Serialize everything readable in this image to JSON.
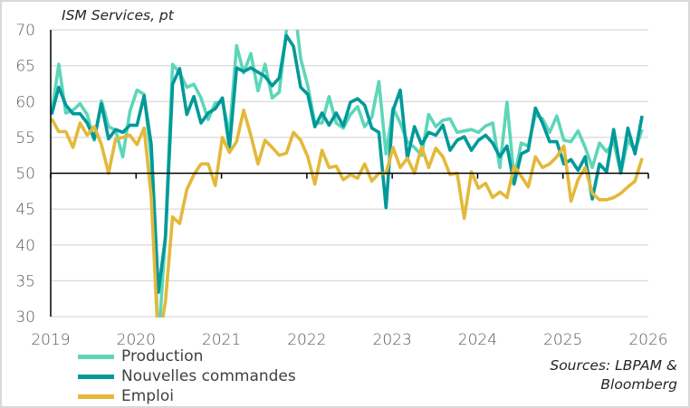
{
  "chart_data": {
    "type": "line",
    "title": "ISM Services, pt",
    "xlabel": "",
    "ylabel": "",
    "x_start": "2019-01",
    "frequency": "monthly",
    "xlim": [
      2019,
      2026
    ],
    "ylim": [
      30,
      70
    ],
    "reference_line": 50,
    "x_ticks": [
      "2019",
      "2020",
      "2021",
      "2022",
      "2023",
      "2024",
      "2025",
      "2026"
    ],
    "y_ticks": [
      "30",
      "35",
      "40",
      "45",
      "50",
      "55",
      "60",
      "65",
      "70"
    ],
    "grid": "horizontal",
    "legend_position": "bottom-left",
    "series": [
      {
        "name": "Production",
        "color": "#5dd6b8",
        "values": [
          58.2,
          65.2,
          58.4,
          58.8,
          59.7,
          58.2,
          54.6,
          60.1,
          56.5,
          56,
          52.3,
          58.6,
          61.6,
          61,
          52,
          26,
          41.5,
          65.2,
          64,
          62,
          62.4,
          60.5,
          57.5,
          59.8,
          60,
          55.5,
          67.8,
          64,
          66.7,
          61.5,
          65.2,
          60.5,
          61.3,
          70,
          74.6,
          66,
          62.2,
          57,
          57,
          60.7,
          57,
          56.3,
          58.2,
          59.3,
          56.5,
          57.8,
          62.8,
          52.7,
          59.1,
          57,
          54.4,
          53.6,
          52.5,
          58.2,
          56.5,
          57.4,
          57.6,
          55.7,
          55.9,
          56.1,
          55.7,
          56.6,
          57,
          50.8,
          59.9,
          49.3,
          54.2,
          53.8,
          58.2,
          57.6,
          55.7,
          58,
          54.6,
          54.4,
          55.9,
          53.6,
          50.8,
          54.2,
          53,
          54.4,
          50,
          54.6,
          53.2,
          56.1
        ]
      },
      {
        "name": "Nouvelles commandes",
        "color": "#00999a",
        "values": [
          58.2,
          62,
          59.5,
          58.3,
          58.3,
          57,
          54.8,
          59.7,
          54.8,
          56.1,
          55.7,
          56.7,
          56.7,
          60.8,
          54,
          33.4,
          41,
          62.4,
          64.6,
          58.2,
          60.7,
          57,
          58.4,
          59,
          60.5,
          53.6,
          64.7,
          64.2,
          64.7,
          64.1,
          63.5,
          62.2,
          63.3,
          69.2,
          67.7,
          62,
          61,
          56.5,
          58.4,
          56.7,
          58.4,
          56.6,
          59.9,
          60.4,
          59.5,
          56.3,
          55.7,
          45.2,
          58.8,
          61.6,
          52.1,
          56.5,
          54,
          55.7,
          55.3,
          56.7,
          53.2,
          54.6,
          55.1,
          53.2,
          54.6,
          55.3,
          54.2,
          52.3,
          53.8,
          48.5,
          52.7,
          53.2,
          59.1,
          57,
          54.4,
          54.4,
          51.3,
          51.9,
          50.4,
          52.3,
          46.4,
          51.3,
          50.2,
          56.1,
          50.2,
          56.3,
          52.7,
          58
        ]
      },
      {
        "name": "Emploi",
        "color": "#e3b93a",
        "values": [
          57.6,
          55.8,
          55.8,
          53.6,
          57,
          55.3,
          56.5,
          54,
          50,
          54.8,
          55,
          55.3,
          54,
          56.3,
          46.8,
          26,
          32.1,
          43.9,
          43,
          47.7,
          49.8,
          51.3,
          51.3,
          48.3,
          55,
          52.9,
          54.4,
          58.8,
          55.3,
          51.3,
          54.6,
          53.6,
          52.5,
          52.8,
          55.7,
          54.6,
          52.3,
          48.5,
          53.2,
          50.8,
          51,
          49.1,
          49.8,
          49.3,
          51.3,
          48.9,
          50,
          50,
          53.6,
          50.8,
          52.1,
          50,
          53.7,
          50.8,
          53.5,
          52.3,
          49.8,
          50,
          43.7,
          50.2,
          47.9,
          48.6,
          46.6,
          47.4,
          46.6,
          51,
          49.6,
          48.1,
          52.3,
          50.8,
          51.3,
          52.3,
          53.8,
          46.1,
          49.1,
          50.8,
          47.2,
          46.3,
          46.3,
          46.6,
          47.2,
          48.1,
          48.9,
          52.1
        ]
      }
    ],
    "source": [
      "Sources: LBPAM &",
      "Bloomberg"
    ]
  }
}
